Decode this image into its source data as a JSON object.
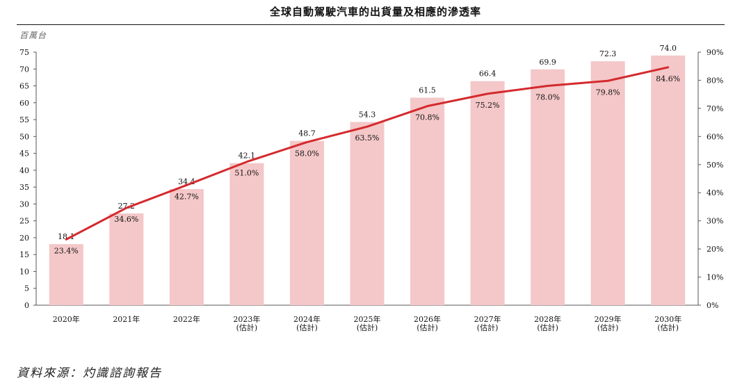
{
  "title": "全球自動駕駛汽車的出貨量及相應的滲透率",
  "unit_label": "百萬台",
  "source": "資料來源：灼識諮詢報告",
  "colors": {
    "bar": "#f4c7c8",
    "line": "#d42a2e",
    "axis": "#555555",
    "text": "#111111"
  },
  "chart_data": {
    "type": "bar",
    "title": "全球自動駕駛汽車的出貨量及相應的滲透率",
    "categories": [
      {
        "year": "2020年",
        "note": ""
      },
      {
        "year": "2021年",
        "note": ""
      },
      {
        "year": "2022年",
        "note": ""
      },
      {
        "year": "2023年",
        "note": "(估計)"
      },
      {
        "year": "2024年",
        "note": "(估計)"
      },
      {
        "year": "2025年",
        "note": "(估計)"
      },
      {
        "year": "2026年",
        "note": "(估計)"
      },
      {
        "year": "2027年",
        "note": "(估計)"
      },
      {
        "year": "2028年",
        "note": "(估計)"
      },
      {
        "year": "2029年",
        "note": "(估計)"
      },
      {
        "year": "2030年",
        "note": "(估計)"
      }
    ],
    "series": [
      {
        "type": "bar",
        "axis": "left",
        "values": [
          18.1,
          27.2,
          34.4,
          42.1,
          48.7,
          54.3,
          61.5,
          66.4,
          69.9,
          72.3,
          74.0
        ],
        "labels": [
          "18.1",
          "27.2",
          "34.4",
          "42.1",
          "48.7",
          "54.3",
          "61.5",
          "66.4",
          "69.9",
          "72.3",
          "74.0"
        ]
      },
      {
        "type": "line",
        "axis": "right",
        "values": [
          23.4,
          34.6,
          42.7,
          51.0,
          58.0,
          63.5,
          70.8,
          75.2,
          78.0,
          79.8,
          84.6
        ],
        "labels": [
          "23.4%",
          "34.6%",
          "42.7%",
          "51.0%",
          "58.0%",
          "63.5%",
          "70.8%",
          "75.2%",
          "78.0%",
          "79.8%",
          "84.6%"
        ]
      }
    ],
    "y_left": {
      "ylim": [
        0,
        75
      ],
      "ticks": [
        "0",
        "5",
        "10",
        "15",
        "20",
        "25",
        "30",
        "35",
        "40",
        "45",
        "50",
        "55",
        "60",
        "65",
        "70",
        "75"
      ]
    },
    "y_right": {
      "ylim": [
        0,
        90
      ],
      "ticks": [
        "0%",
        "10%",
        "20%",
        "30%",
        "40%",
        "50%",
        "60%",
        "70%",
        "80%",
        "90%"
      ]
    },
    "xlabel": "",
    "ylabel": "百萬台",
    "grid": false,
    "legend": "none"
  }
}
